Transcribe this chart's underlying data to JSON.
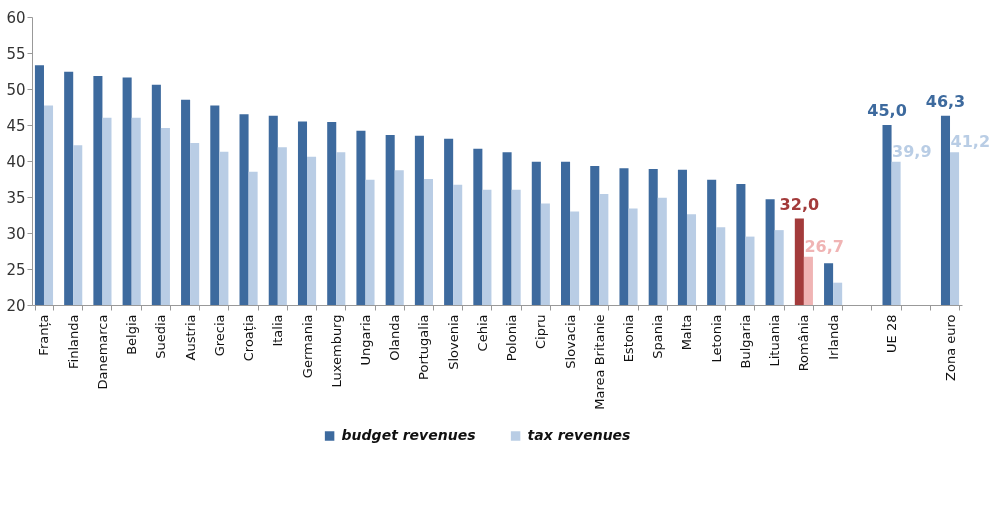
{
  "chart_data": {
    "type": "bar",
    "legend": "bottom",
    "grid": false,
    "categories": [
      "Franța",
      "Finlanda",
      "Danemarca",
      "Belgia",
      "Suedia",
      "Austria",
      "Grecia",
      "Croația",
      "Italia",
      "Germania",
      "Luxemburg",
      "Ungaria",
      "Olanda",
      "Portugalia",
      "Slovenia",
      "Cehia",
      "Polonia",
      "Cipru",
      "Slovacia",
      "Marea Britanie",
      "Estonia",
      "Spania",
      "Malta",
      "Letonia",
      "Bulgaria",
      "Lituania",
      "România",
      "Irlanda",
      null,
      "UE 28",
      null,
      "Zona euro"
    ],
    "ylim": [
      20,
      60
    ],
    "yticks": [
      20,
      25,
      30,
      35,
      40,
      45,
      50,
      55,
      60
    ],
    "series": [
      {
        "name": "budget revenues",
        "color": "#3d6a9e",
        "colors": [
          "#3d6a9e",
          "#3d6a9e",
          "#3d6a9e",
          "#3d6a9e",
          "#3d6a9e",
          "#3d6a9e",
          "#3d6a9e",
          "#3d6a9e",
          "#3d6a9e",
          "#3d6a9e",
          "#3d6a9e",
          "#3d6a9e",
          "#3d6a9e",
          "#3d6a9e",
          "#3d6a9e",
          "#3d6a9e",
          "#3d6a9e",
          "#3d6a9e",
          "#3d6a9e",
          "#3d6a9e",
          "#3d6a9e",
          "#3d6a9e",
          "#3d6a9e",
          "#3d6a9e",
          "#3d6a9e",
          "#3d6a9e",
          "#a33b3b",
          "#3d6a9e",
          "#3d6a9e",
          "#3d6a9e",
          "#3d6a9e",
          "#3d6a9e"
        ],
        "values": [
          53.3,
          52.4,
          51.8,
          51.6,
          50.6,
          48.5,
          47.7,
          46.5,
          46.3,
          45.5,
          45.4,
          44.2,
          43.6,
          43.5,
          43.1,
          41.7,
          41.2,
          39.9,
          39.9,
          39.3,
          39.0,
          38.9,
          38.8,
          37.4,
          36.8,
          34.7,
          32.0,
          25.8,
          null,
          45.0,
          null,
          46.3
        ],
        "value_labels": [
          null,
          null,
          null,
          null,
          null,
          null,
          null,
          null,
          null,
          null,
          null,
          null,
          null,
          null,
          null,
          null,
          null,
          null,
          null,
          null,
          null,
          null,
          null,
          null,
          null,
          null,
          "32,0",
          null,
          null,
          "45,0",
          null,
          "46,3"
        ]
      },
      {
        "name": "tax revenues",
        "color": "#b9cde5",
        "colors": [
          "#b9cde5",
          "#b9cde5",
          "#b9cde5",
          "#b9cde5",
          "#b9cde5",
          "#b9cde5",
          "#b9cde5",
          "#b9cde5",
          "#b9cde5",
          "#b9cde5",
          "#b9cde5",
          "#b9cde5",
          "#b9cde5",
          "#b9cde5",
          "#b9cde5",
          "#b9cde5",
          "#b9cde5",
          "#b9cde5",
          "#b9cde5",
          "#b9cde5",
          "#b9cde5",
          "#b9cde5",
          "#b9cde5",
          "#b9cde5",
          "#b9cde5",
          "#b9cde5",
          "#f0b4b4",
          "#b9cde5",
          "#b9cde5",
          "#b9cde5",
          "#b9cde5",
          "#b9cde5"
        ],
        "values": [
          47.7,
          42.2,
          46.0,
          46.0,
          44.6,
          42.5,
          41.3,
          38.5,
          41.9,
          40.6,
          41.2,
          37.4,
          38.7,
          37.5,
          36.7,
          36.0,
          36.0,
          34.1,
          33.0,
          35.4,
          33.4,
          34.9,
          32.6,
          30.8,
          29.5,
          30.4,
          26.7,
          23.1,
          null,
          39.9,
          null,
          41.2
        ],
        "value_labels": [
          null,
          null,
          null,
          null,
          null,
          null,
          null,
          null,
          null,
          null,
          null,
          null,
          null,
          null,
          null,
          null,
          null,
          null,
          null,
          null,
          null,
          null,
          null,
          null,
          null,
          null,
          "26,7",
          null,
          null,
          "39,9",
          null,
          "41,2"
        ]
      }
    ]
  }
}
